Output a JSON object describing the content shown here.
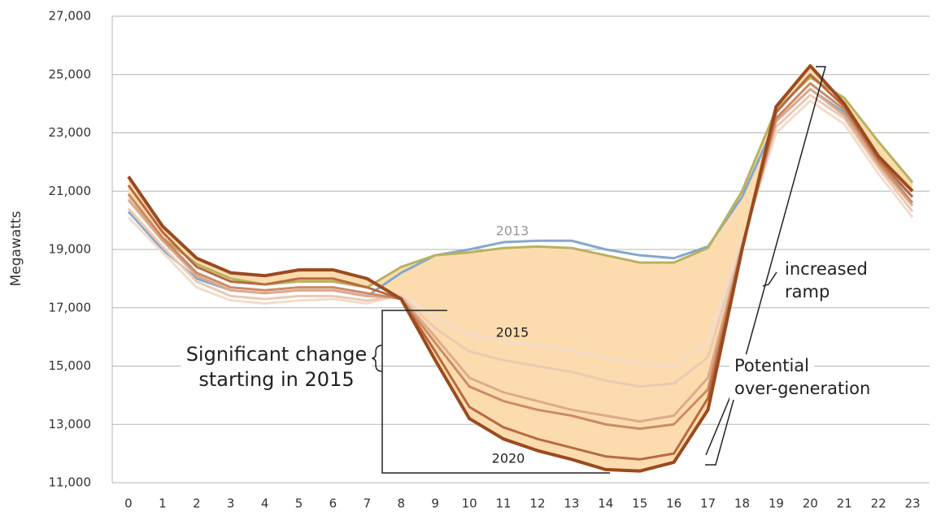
{
  "chart_data": {
    "type": "line",
    "y_label": "Megawatts",
    "x": [
      0,
      1,
      2,
      3,
      4,
      5,
      6,
      7,
      8,
      9,
      10,
      11,
      12,
      13,
      14,
      15,
      16,
      17,
      18,
      19,
      20,
      21,
      22,
      23
    ],
    "xlim": [
      -0.5,
      23.5
    ],
    "xticks": [
      0,
      1,
      2,
      3,
      4,
      5,
      6,
      7,
      8,
      9,
      10,
      11,
      12,
      13,
      14,
      15,
      16,
      17,
      18,
      19,
      20,
      21,
      22,
      23
    ],
    "ylim": [
      11000,
      27000
    ],
    "yticks": [
      {
        "value": 11000,
        "label": "11,000"
      },
      {
        "value": 13000,
        "label": "13,000"
      },
      {
        "value": 15000,
        "label": "15,000"
      },
      {
        "value": 17000,
        "label": "17,000"
      },
      {
        "value": 19000,
        "label": "19,000"
      },
      {
        "value": 21000,
        "label": "21,000"
      },
      {
        "value": 23000,
        "label": "23,000"
      },
      {
        "value": 25000,
        "label": "25,000"
      },
      {
        "value": 27000,
        "label": "27,000"
      }
    ],
    "grid": true,
    "fill_color": "#fcdcae",
    "series": [
      {
        "color": "#86a8c9",
        "values": [
          20300,
          19000,
          18000,
          17600,
          17500,
          17600,
          17600,
          17400,
          18200,
          18800,
          19000,
          19250,
          19300,
          19300,
          19000,
          18800,
          18700,
          19100,
          20800,
          23400,
          24500,
          23700,
          22000,
          20800
        ]
      },
      {
        "name": "2013",
        "color": "#b8b25e",
        "values": [
          20700,
          19400,
          18500,
          18000,
          17800,
          17900,
          17900,
          17700,
          18400,
          18800,
          18900,
          19050,
          19100,
          19050,
          18800,
          18550,
          18550,
          19050,
          21000,
          23800,
          24900,
          24200,
          22700,
          21300
        ]
      },
      {
        "name": "2015",
        "color": "#f3dccb",
        "values": [
          20100,
          18900,
          17700,
          17250,
          17150,
          17250,
          17300,
          17150,
          17450,
          16700,
          16100,
          15850,
          15700,
          15550,
          15300,
          15100,
          15000,
          15800,
          19300,
          23000,
          24100,
          23300,
          21600,
          20100
        ]
      },
      {
        "color": "#ecc9b3",
        "values": [
          20400,
          19100,
          17900,
          17400,
          17300,
          17400,
          17400,
          17250,
          17400,
          16300,
          15500,
          15200,
          15000,
          14800,
          14500,
          14300,
          14400,
          15300,
          19200,
          23200,
          24300,
          23500,
          21800,
          20300
        ]
      },
      {
        "color": "#deaa8c",
        "values": [
          20700,
          19300,
          18100,
          17600,
          17500,
          17600,
          17600,
          17400,
          17350,
          16000,
          14600,
          14100,
          13800,
          13500,
          13300,
          13100,
          13300,
          14600,
          19100,
          23400,
          24500,
          23600,
          21900,
          20500
        ]
      },
      {
        "color": "#cd8a66",
        "values": [
          20900,
          19400,
          18200,
          17700,
          17600,
          17700,
          17700,
          17500,
          17300,
          15800,
          14300,
          13800,
          13500,
          13300,
          13000,
          12850,
          13000,
          14200,
          19100,
          23500,
          24700,
          23800,
          22000,
          20600
        ]
      },
      {
        "color": "#b86a42",
        "values": [
          21200,
          19600,
          18400,
          17900,
          17800,
          18000,
          18000,
          17700,
          17300,
          15500,
          13600,
          12900,
          12500,
          12200,
          11900,
          11800,
          12000,
          13900,
          19000,
          23700,
          25000,
          23900,
          22100,
          20800
        ]
      },
      {
        "name": "2020",
        "color": "#9b4a1e",
        "values": [
          21500,
          19800,
          18700,
          18200,
          18100,
          18300,
          18300,
          18000,
          17300,
          15200,
          13200,
          12500,
          12100,
          11800,
          11450,
          11400,
          11700,
          13500,
          19000,
          23900,
          25300,
          24000,
          22200,
          21000
        ]
      }
    ],
    "annotations": [
      {
        "lines": [
          "Significant change",
          "starting in 2015"
        ]
      },
      {
        "lines": [
          "increased",
          "ramp"
        ]
      },
      {
        "lines": [
          "Potential",
          "over-generation"
        ]
      }
    ]
  }
}
